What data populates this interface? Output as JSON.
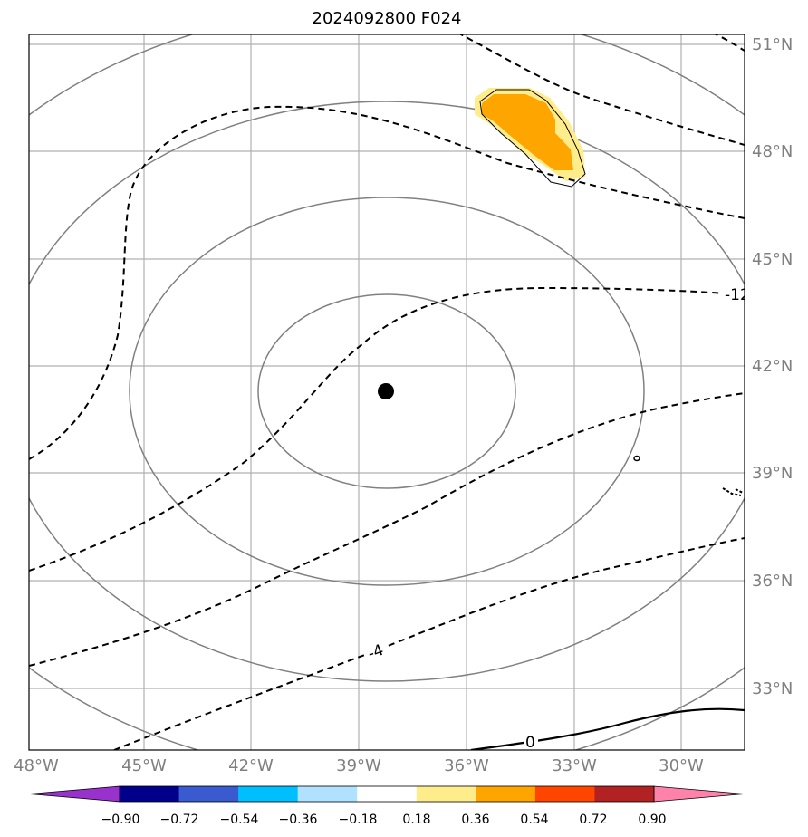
{
  "title": "2024092800 F024",
  "longitude_labels": [
    "48°W",
    "45°W",
    "42°W",
    "39°W",
    "36°W",
    "33°W",
    "30°W"
  ],
  "latitude_labels": [
    "51°N",
    "48°N",
    "45°N",
    "42°N",
    "39°N",
    "36°N",
    "33°N"
  ],
  "contour_labels": {
    "minus12": "-12",
    "minus4": "-4",
    "zero": "0"
  },
  "colorbar": {
    "tick_labels": [
      "−0.90",
      "−0.72",
      "−0.54",
      "−0.36",
      "−0.18",
      "0.18",
      "0.36",
      "0.54",
      "0.72",
      "0.90"
    ],
    "colors": [
      "#9932CC",
      "#00008B",
      "#3A5BD0",
      "#00BFFF",
      "#B0E2FF",
      "#FFFFFF",
      "#FFEC8B",
      "#FFA500",
      "#FF4500",
      "#B22222",
      "#FF82AB"
    ]
  },
  "map": {
    "extent_lon": [
      -48,
      -28
    ],
    "extent_lat": [
      31,
      51.3
    ],
    "center_marker": {
      "lon": -38.2,
      "lat": 41.3
    },
    "range_rings": "concentric gray ellipses around center",
    "gridlines": true,
    "contours_dashed_color": "#000000",
    "shading_colors": [
      "#FFEC8B",
      "#FFA500"
    ]
  }
}
